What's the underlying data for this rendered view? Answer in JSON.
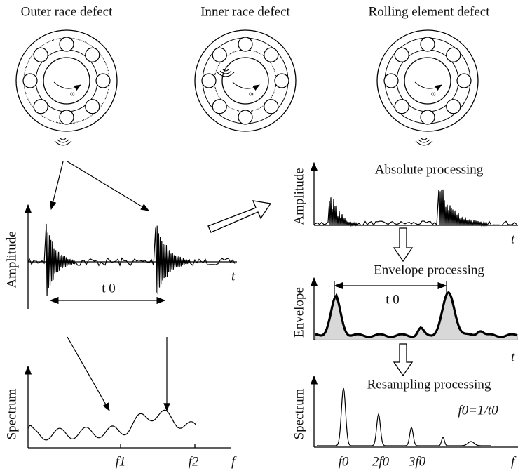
{
  "defects": [
    {
      "label": "Outer race defect",
      "omega": "ω"
    },
    {
      "label": "Inner race defect",
      "omega": "ω"
    },
    {
      "label": "Rolling element defect",
      "omega": "ω"
    }
  ],
  "left": {
    "waveform": {
      "y_label": "Amplitude",
      "x_label": "t",
      "period": "t 0"
    },
    "spectrum": {
      "y_label": "Spectrum",
      "x_label": "f",
      "ticks": [
        "f1",
        "f2"
      ]
    }
  },
  "right": {
    "absolute": {
      "title": "Absolute processing",
      "y_label": "Amplitude",
      "x_label": "t"
    },
    "envelope": {
      "title": "Envelope processing",
      "y_label": "Envelope",
      "x_label": "t",
      "period": "t 0"
    },
    "resampling": {
      "title": "Resampling processing",
      "y_label": "Spectrum",
      "x_label": "f",
      "formula": "f0=1/t0",
      "ticks": [
        "f0",
        "2f0",
        "3f0"
      ]
    }
  }
}
